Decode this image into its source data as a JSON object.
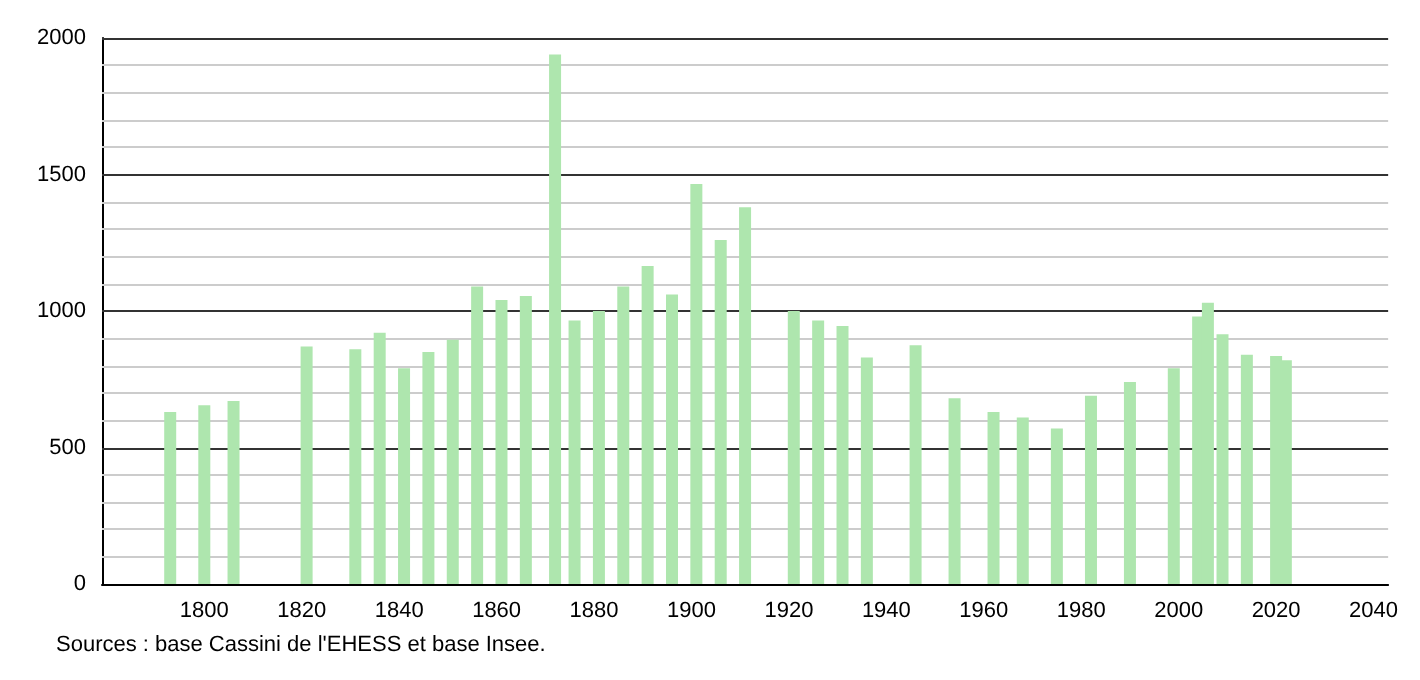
{
  "chart_data": {
    "type": "bar",
    "x": [
      1793,
      1800,
      1806,
      1821,
      1831,
      1836,
      1841,
      1846,
      1851,
      1856,
      1861,
      1866,
      1872,
      1876,
      1881,
      1886,
      1891,
      1896,
      1901,
      1906,
      1911,
      1921,
      1926,
      1931,
      1936,
      1946,
      1954,
      1962,
      1968,
      1975,
      1982,
      1990,
      1999,
      2004,
      2006,
      2009,
      2014,
      2020,
      2022
    ],
    "values": [
      630,
      655,
      670,
      870,
      860,
      920,
      790,
      850,
      895,
      1090,
      1040,
      1055,
      1940,
      965,
      1000,
      1090,
      1165,
      1060,
      1465,
      1260,
      1380,
      1000,
      965,
      945,
      830,
      875,
      680,
      630,
      610,
      570,
      690,
      740,
      790,
      980,
      1030,
      915,
      840,
      835,
      820
    ],
    "color": "#aee6ae",
    "xlim": [
      1779,
      2043
    ],
    "xticks": [
      1800,
      1820,
      1840,
      1860,
      1880,
      1900,
      1920,
      1940,
      1960,
      1980,
      2000,
      2020,
      2040
    ],
    "ylim": [
      0,
      2000
    ],
    "yticks": [
      0,
      {
        "value": 100,
        "label": null
      },
      {
        "value": 200,
        "label": null
      },
      {
        "value": 300,
        "label": null
      },
      {
        "value": 400,
        "label": null
      },
      500,
      {
        "value": 600,
        "label": null
      },
      {
        "value": 700,
        "label": null
      },
      {
        "value": 800,
        "label": null
      },
      {
        "value": 900,
        "label": null
      },
      1000,
      {
        "value": 1100,
        "label": null
      },
      {
        "value": 1200,
        "label": null
      },
      {
        "value": 1300,
        "label": null
      },
      {
        "value": 1400,
        "label": null
      },
      1500,
      {
        "value": 1600,
        "label": null
      },
      {
        "value": 1700,
        "label": null
      },
      {
        "value": 1800,
        "label": null
      },
      {
        "value": 1900,
        "label": null
      },
      2000
    ],
    "grid": true,
    "annotations": [
      "Sources : base Cassini de l'EHESS et base Insee."
    ]
  }
}
